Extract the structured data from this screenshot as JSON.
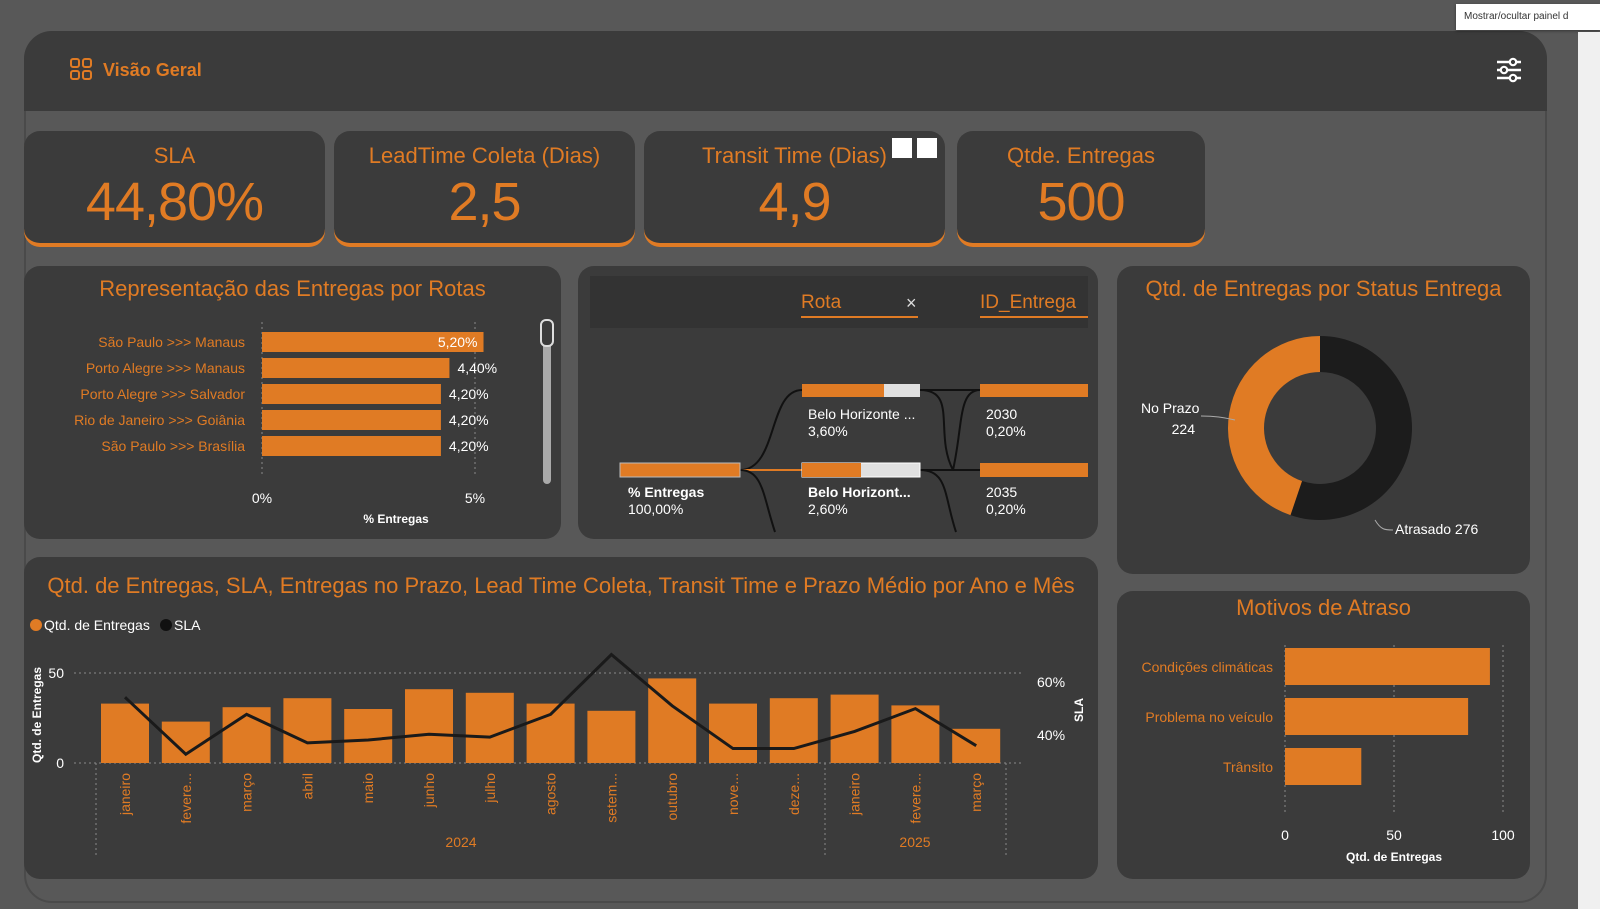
{
  "tooltip": "Mostrar/ocultar painel d",
  "header": {
    "title": "Visão Geral",
    "icon": "grid-icon",
    "filter_icon": "sliders-icon"
  },
  "kpis": [
    {
      "label": "SLA",
      "value": "44,80%"
    },
    {
      "label": "LeadTime Coleta (Dias)",
      "value": "2,5"
    },
    {
      "label": "Transit Time (Dias)",
      "value": "4,9"
    },
    {
      "label": "Qtde. Entregas",
      "value": "500"
    }
  ],
  "routes_chart": {
    "title": "Representação das Entregas por Rotas",
    "xlabel": "% Entregas",
    "ticks": [
      "0%",
      "5%"
    ],
    "categories": [
      "São Paulo >>> Manaus",
      "Porto Alegre >>> Manaus",
      "Porto Alegre >>> Salvador",
      "Rio de Janeiro >>> Goiânia",
      "São Paulo >>> Brasília"
    ],
    "values": [
      5.2,
      4.4,
      4.2,
      4.2,
      4.2
    ],
    "labels": [
      "5,20%",
      "4,40%",
      "4,20%",
      "4,20%",
      "4,20%"
    ]
  },
  "decomp_tree": {
    "col1": "Rota",
    "col2": "ID_Entrega",
    "root": {
      "label": "% Entregas",
      "value": "100,00%"
    },
    "level1": [
      {
        "label": "Belo Horizonte ...",
        "value": "3,60%"
      },
      {
        "label": "Belo Horizont...",
        "value": "2,60%"
      }
    ],
    "level2": [
      {
        "label": "2030",
        "value": "0,20%"
      },
      {
        "label": "2035",
        "value": "0,20%"
      }
    ]
  },
  "status_chart": {
    "title": "Qtd. de Entregas por Status Entrega",
    "slices": [
      {
        "name": "No Prazo",
        "value": 224,
        "color": "#e07b24"
      },
      {
        "name": "Atrasado",
        "value": 276,
        "color": "#1c1c1c"
      }
    ],
    "label_no_prazo": "No Prazo",
    "label_no_prazo_value": "224",
    "label_atrasado": "Atrasado 276"
  },
  "monthly_chart": {
    "title": "Qtd. de Entregas, SLA, Entregas no Prazo, Lead Time Coleta, Transit Time e Prazo Médio por Ano e Mês",
    "legend": [
      "Qtd. de Entregas",
      "SLA"
    ],
    "ylabel_left": "Qtd. de Entregas",
    "ylabel_right": "SLA",
    "left_ticks": [
      "50",
      "0"
    ],
    "right_ticks": [
      "60%",
      "40%"
    ],
    "months": [
      "janeiro",
      "fevere...",
      "março",
      "abril",
      "maio",
      "junho",
      "julho",
      "agosto",
      "setem...",
      "outubro",
      "nove...",
      "deze...",
      "janeiro",
      "fevere...",
      "março"
    ],
    "years": [
      "2024",
      "2025"
    ],
    "bars": [
      33,
      23,
      31,
      36,
      30,
      41,
      39,
      33,
      29,
      47,
      33,
      36,
      38,
      32,
      19
    ],
    "sla": [
      0.55,
      0.35,
      0.49,
      0.39,
      0.4,
      0.42,
      0.41,
      0.49,
      0.7,
      0.52,
      0.37,
      0.37,
      0.43,
      0.51,
      0.38
    ]
  },
  "delay_chart": {
    "title": "Motivos de Atraso",
    "xlabel": "Qtd. de Entregas",
    "ticks": [
      "0",
      "50",
      "100"
    ],
    "categories": [
      "Condições climáticas",
      "Problema no veículo",
      "Trânsito"
    ],
    "values": [
      94,
      84,
      35
    ]
  },
  "colors": {
    "accent": "#e07b24",
    "card": "#3b3b3b",
    "background": "#585858"
  },
  "chart_data": [
    {
      "type": "bar",
      "title": "Representação das Entregas por Rotas",
      "categories": [
        "São Paulo >>> Manaus",
        "Porto Alegre >>> Manaus",
        "Porto Alegre >>> Salvador",
        "Rio de Janeiro >>> Goiânia",
        "São Paulo >>> Brasília"
      ],
      "values": [
        5.2,
        4.4,
        4.2,
        4.2,
        4.2
      ],
      "xlabel": "% Entregas"
    },
    {
      "type": "pie",
      "title": "Qtd. de Entregas por Status Entrega",
      "categories": [
        "No Prazo",
        "Atrasado"
      ],
      "values": [
        224,
        276
      ]
    },
    {
      "type": "bar",
      "title": "Qtd. de Entregas, SLA, Entregas no Prazo, Lead Time Coleta, Transit Time e Prazo Médio por Ano e Mês",
      "categories": [
        "janeiro",
        "fevere...",
        "março",
        "abril",
        "maio",
        "junho",
        "julho",
        "agosto",
        "setem...",
        "outubro",
        "nove...",
        "deze...",
        "janeiro",
        "fevere...",
        "março"
      ],
      "series": [
        {
          "name": "Qtd. de Entregas",
          "values": [
            33,
            23,
            31,
            36,
            30,
            41,
            39,
            33,
            29,
            47,
            33,
            36,
            38,
            32,
            19
          ]
        },
        {
          "name": "SLA",
          "values": [
            0.55,
            0.35,
            0.49,
            0.39,
            0.4,
            0.42,
            0.41,
            0.49,
            0.7,
            0.52,
            0.37,
            0.37,
            0.43,
            0.51,
            0.38
          ]
        }
      ]
    },
    {
      "type": "bar",
      "title": "Motivos de Atraso",
      "categories": [
        "Condições climáticas",
        "Problema no veículo",
        "Trânsito"
      ],
      "values": [
        94,
        84,
        35
      ],
      "xlabel": "Qtd. de Entregas"
    }
  ]
}
